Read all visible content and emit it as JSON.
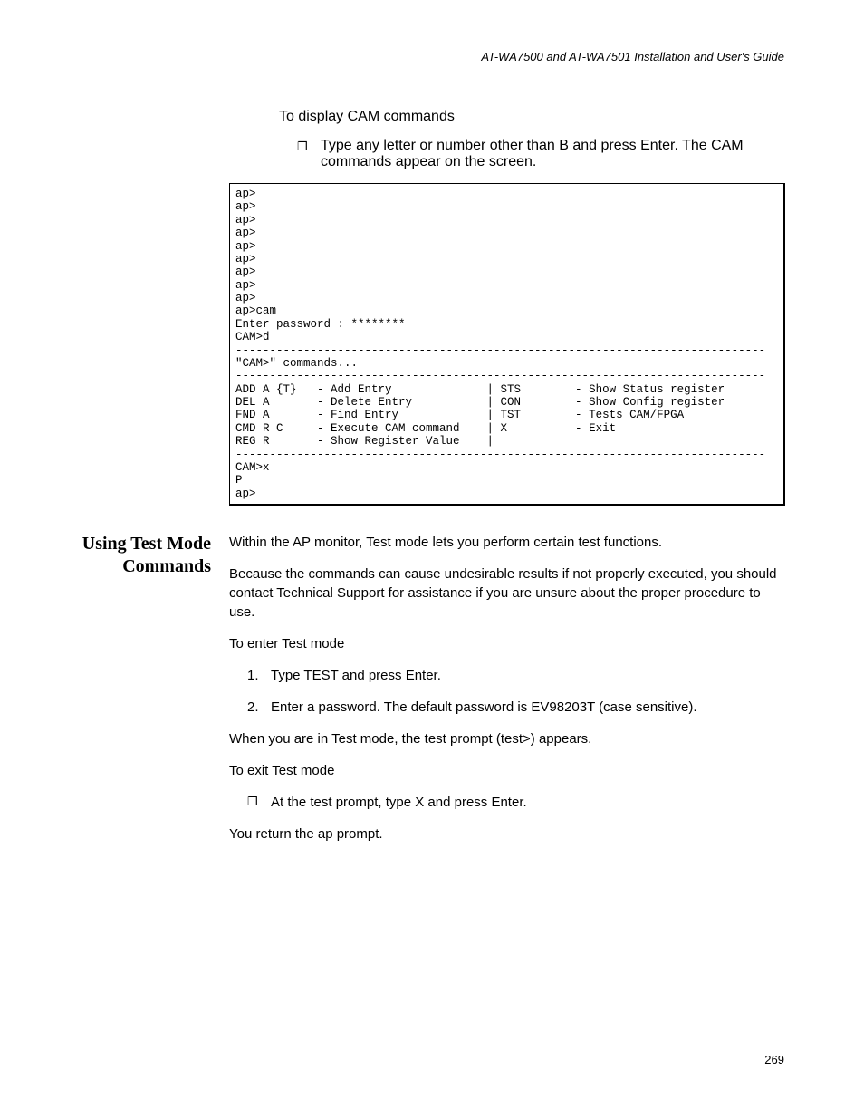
{
  "header": "AT-WA7500 and AT-WA7501 Installation and User's Guide",
  "section1": {
    "intro": "To display CAM commands",
    "bullet1": "Type any letter or number other than B and press Enter. The CAM commands appear on the screen."
  },
  "terminal": {
    "lines": [
      "ap>",
      "ap>",
      "ap>",
      "ap>",
      "ap>",
      "ap>",
      "ap>",
      "ap>",
      "ap>",
      "ap>cam",
      "Enter password : ********",
      "CAM>d",
      "------------------------------------------------------------------------------",
      "\"CAM>\" commands...",
      "------------------------------------------------------------------------------",
      "ADD A {T}   - Add Entry              | STS        - Show Status register",
      "DEL A       - Delete Entry           | CON        - Show Config register",
      "FND A       - Find Entry             | TST        - Tests CAM/FPGA",
      "CMD R C     - Execute CAM command    | X          - Exit",
      "REG R       - Show Register Value    |",
      "------------------------------------------------------------------------------",
      "CAM>x",
      "P",
      "ap>"
    ]
  },
  "section2": {
    "heading": "Using Test Mode Commands",
    "p1": "Within the AP monitor, Test mode lets you perform certain test functions.",
    "p2": "Because the commands can cause undesirable results if not properly executed, you should contact Technical Support for assistance if you are unsure about the proper procedure to use.",
    "p3": "To enter Test mode",
    "step1": "Type TEST and press Enter.",
    "step2": "Enter a password. The default password is EV98203T (case sensitive).",
    "p4": "When you are in Test mode, the test prompt (test>) appears.",
    "p5": "To exit Test mode",
    "bullet1": "At the test prompt, type X and press Enter.",
    "p6": "You return the ap prompt."
  },
  "page_number": "269",
  "bullet_glyph": "❐",
  "step_labels": {
    "s1": "1.",
    "s2": "2."
  }
}
